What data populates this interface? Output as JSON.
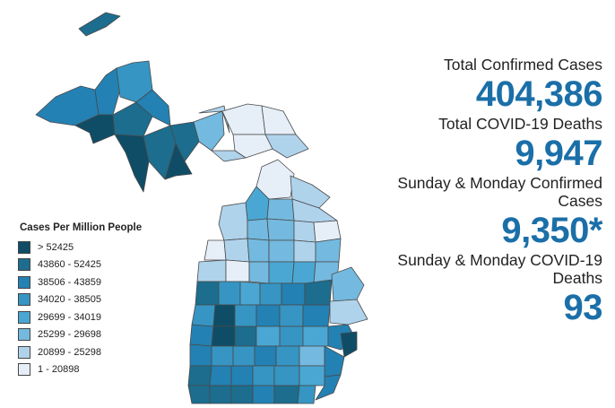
{
  "colors": {
    "value_text": "#1b6fa8",
    "stroke": "#4a4a4a",
    "bins": [
      "#0f4d66",
      "#1c6d8e",
      "#2381b3",
      "#3695c3",
      "#4aa7d3",
      "#74b9df",
      "#b0d3ec",
      "#e6eff8"
    ]
  },
  "legend": {
    "title": "Cases Per Million People",
    "items": [
      {
        "label": "> 52425"
      },
      {
        "label": "43860 - 52425"
      },
      {
        "label": "38506 - 43859"
      },
      {
        "label": "34020 - 38505"
      },
      {
        "label": "29699 - 34019"
      },
      {
        "label": "25299 - 29698"
      },
      {
        "label": "20899 - 25298"
      },
      {
        "label": "1 - 20898"
      }
    ]
  },
  "stats": [
    {
      "label": "Total Confirmed Cases",
      "value": "404,386"
    },
    {
      "label": "Total COVID-19 Deaths",
      "value": "9,947"
    },
    {
      "label": "Sunday & Monday Confirmed Cases",
      "value": "9,350*"
    },
    {
      "label": "Sunday & Monday COVID-19 Deaths",
      "value": "93"
    }
  ]
}
